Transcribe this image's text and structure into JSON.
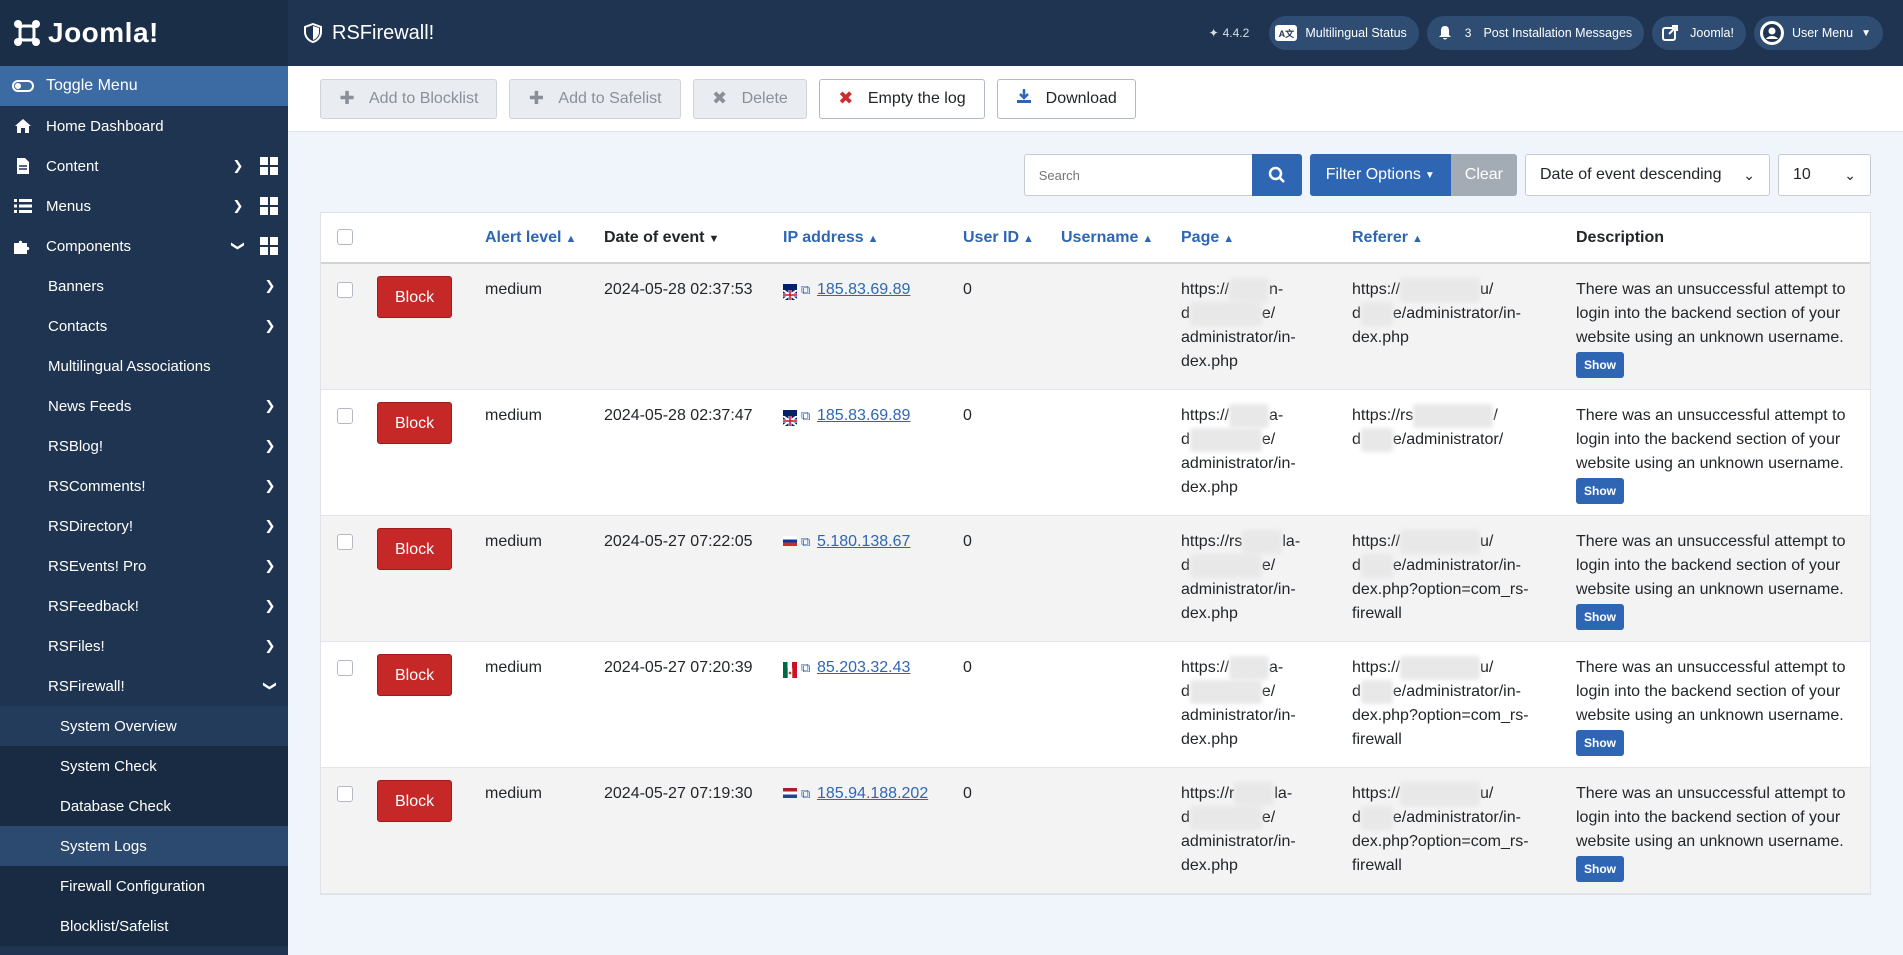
{
  "brand": {
    "name": "Joomla!"
  },
  "header": {
    "title": "RSFirewall!",
    "version": "4.4.2",
    "multilingual": "Multilingual Status",
    "post_install_count": "3",
    "post_install": "Post Installation Messages",
    "joomla": "Joomla!",
    "user_menu": "User Menu"
  },
  "sidebar": {
    "toggle": "Toggle Menu",
    "items": [
      {
        "label": "Home Dashboard"
      },
      {
        "label": "Content"
      },
      {
        "label": "Menus"
      },
      {
        "label": "Components"
      }
    ],
    "components": [
      "Banners",
      "Contacts",
      "Multilingual Associations",
      "News Feeds",
      "RSBlog!",
      "RSComments!",
      "RSDirectory!",
      "RSEvents! Pro",
      "RSFeedback!",
      "RSFiles!",
      "RSFirewall!"
    ],
    "firewall_sub": [
      "System Overview",
      "System Check",
      "Database Check",
      "System Logs",
      "Firewall Configuration",
      "Blocklist/Safelist"
    ]
  },
  "toolbar": {
    "add_blocklist": "Add to Blocklist",
    "add_safelist": "Add to Safelist",
    "delete": "Delete",
    "empty_log": "Empty the log",
    "download": "Download"
  },
  "filters": {
    "search_placeholder": "Search",
    "filter_options": "Filter Options",
    "clear": "Clear",
    "ordering": "Date of event descending",
    "limit": "10"
  },
  "table": {
    "columns": {
      "alert": "Alert level",
      "date": "Date of event",
      "ip": "IP address",
      "user_id": "User ID",
      "username": "Username",
      "page": "Page",
      "referer": "Referer",
      "description": "Description"
    },
    "block_label": "Block",
    "show_label": "Show",
    "rows": [
      {
        "level": "medium",
        "date": "2024-05-28 02:37:53",
        "ip": "185.83.69.89",
        "flag": "gb",
        "user_id": "0",
        "page_a": "https://",
        "page_b": "n-",
        "page_c": "d",
        "page_d": "e/",
        "page_e": "administrator/in-",
        "page_f": "dex.php",
        "ref_a": "https://",
        "ref_b": "u/",
        "ref_c": "d",
        "ref_d": "e/administrator/in-",
        "ref_e": "dex.php",
        "ref_f": "",
        "description": "There was an unsuccessful attempt to login into the backend section of your website using an unknown username."
      },
      {
        "level": "medium",
        "date": "2024-05-28 02:37:47",
        "ip": "185.83.69.89",
        "flag": "gb",
        "user_id": "0",
        "page_a": "https://",
        "page_b": "a-",
        "page_c": "d",
        "page_d": "e/",
        "page_e": "administrator/in-",
        "page_f": "dex.php",
        "ref_a": "https://rs",
        "ref_b": "/",
        "ref_c": "d",
        "ref_d": "e/administrator/",
        "ref_e": "",
        "ref_f": "",
        "description": "There was an unsuccessful attempt to login into the backend section of your website using an unknown username."
      },
      {
        "level": "medium",
        "date": "2024-05-27 07:22:05",
        "ip": "5.180.138.67",
        "flag": "ru",
        "user_id": "0",
        "page_a": "https://rs",
        "page_b": "la-",
        "page_c": "d",
        "page_d": "e/",
        "page_e": "administrator/in-",
        "page_f": "dex.php",
        "ref_a": "https://",
        "ref_b": "u/",
        "ref_c": "d",
        "ref_d": "e/administrator/in-",
        "ref_e": "dex.php?option=com_rs-",
        "ref_f": "firewall",
        "description": "There was an unsuccessful attempt to login into the backend section of your website using an unknown username."
      },
      {
        "level": "medium",
        "date": "2024-05-27 07:20:39",
        "ip": "85.203.32.43",
        "flag": "mx",
        "user_id": "0",
        "page_a": "https://",
        "page_b": "a-",
        "page_c": "d",
        "page_d": "e/",
        "page_e": "administrator/in-",
        "page_f": "dex.php",
        "ref_a": "https://",
        "ref_b": "u/",
        "ref_c": "d",
        "ref_d": "e/administrator/in-",
        "ref_e": "dex.php?option=com_rs-",
        "ref_f": "firewall",
        "description": "There was an unsuccessful attempt to login into the backend section of your website using an unknown username."
      },
      {
        "level": "medium",
        "date": "2024-05-27 07:19:30",
        "ip": "185.94.188.202",
        "flag": "nl",
        "user_id": "0",
        "page_a": "https://r",
        "page_b": "la-",
        "page_c": "d",
        "page_d": "e/",
        "page_e": "administrator/in-",
        "page_f": "dex.php",
        "ref_a": "https://",
        "ref_b": "u/",
        "ref_c": "d",
        "ref_d": "e/administrator/in-",
        "ref_e": "dex.php?option=com_rs-",
        "ref_f": "firewall",
        "description": "There was an unsuccessful attempt to login into the backend section of your website using an unknown username."
      }
    ]
  },
  "colors": {
    "sidebar": "#1f3450",
    "accent": "#2f66b3",
    "danger": "#c52827"
  }
}
